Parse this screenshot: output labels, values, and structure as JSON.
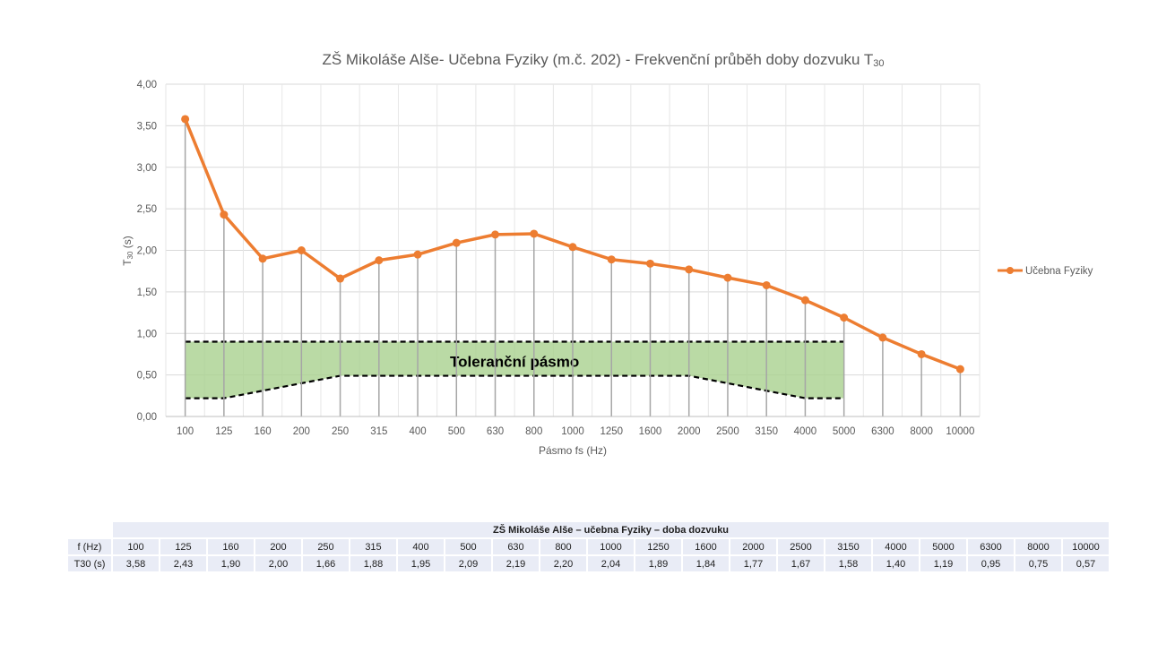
{
  "chart_data": {
    "type": "line",
    "title_main": "ZŠ Mikoláše Alše- Učebna Fyziky (m.č. 202) - Frekvenční průběh doby dozvuku T",
    "title_sub": "30",
    "xlabel": "Pásmo fs (Hz)",
    "ylabel_main": "T",
    "ylabel_sub": "30",
    "ylabel_unit": " (s)",
    "categories": [
      "100",
      "125",
      "160",
      "200",
      "250",
      "315",
      "400",
      "500",
      "630",
      "800",
      "1000",
      "1250",
      "1600",
      "2000",
      "2500",
      "3150",
      "4000",
      "5000",
      "6300",
      "8000",
      "10000"
    ],
    "ylim": [
      0,
      4
    ],
    "yticks": [
      "0,00",
      "0,50",
      "1,00",
      "1,50",
      "2,00",
      "2,50",
      "3,00",
      "3,50",
      "4,00"
    ],
    "grid": true,
    "legend_position": "right",
    "series": [
      {
        "name": "Učebna Fyziky",
        "color": "#ed7d31",
        "values": [
          3.58,
          2.43,
          1.9,
          2.0,
          1.66,
          1.88,
          1.95,
          2.09,
          2.19,
          2.2,
          2.04,
          1.89,
          1.84,
          1.77,
          1.67,
          1.58,
          1.4,
          1.19,
          0.95,
          0.75,
          0.57
        ]
      }
    ],
    "tolerance_band": {
      "label": "Toleranční pásmo",
      "color": "#a9d18e",
      "upper": [
        0.9,
        0.9,
        0.9,
        0.9,
        0.9,
        0.9,
        0.9,
        0.9,
        0.9,
        0.9,
        0.9,
        0.9,
        0.9,
        0.9,
        0.9,
        0.9,
        0.9,
        0.9
      ],
      "lower": [
        0.22,
        0.22,
        0.31,
        0.4,
        0.49,
        0.49,
        0.49,
        0.49,
        0.49,
        0.49,
        0.49,
        0.49,
        0.49,
        0.49,
        0.4,
        0.31,
        0.22,
        0.22
      ]
    }
  },
  "table": {
    "title": "ZŠ Mikoláše Alše – učebna Fyziky – doba dozvuku",
    "rows": [
      {
        "label": "f (Hz)",
        "cells": [
          "100",
          "125",
          "160",
          "200",
          "250",
          "315",
          "400",
          "500",
          "630",
          "800",
          "1000",
          "1250",
          "1600",
          "2000",
          "2500",
          "3150",
          "4000",
          "5000",
          "6300",
          "8000",
          "10000"
        ]
      },
      {
        "label": "T30 (s)",
        "cells": [
          "3,58",
          "2,43",
          "1,90",
          "2,00",
          "1,66",
          "1,88",
          "1,95",
          "2,09",
          "2,19",
          "2,20",
          "2,04",
          "1,89",
          "1,84",
          "1,77",
          "1,67",
          "1,58",
          "1,40",
          "1,19",
          "0,95",
          "0,75",
          "0,57"
        ]
      }
    ]
  }
}
